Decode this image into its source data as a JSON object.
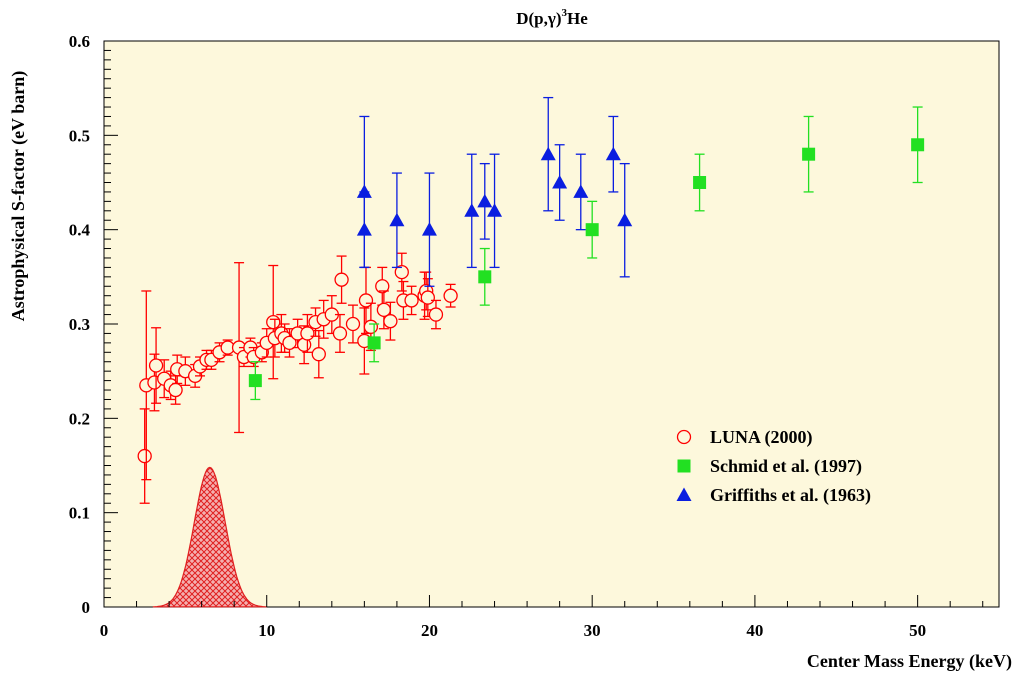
{
  "chart_data": {
    "type": "scatter",
    "title": "D(p,γ)³He",
    "title_parts": {
      "pre": "D(p,",
      "gamma": "γ",
      "paren": ")",
      "sup": "3",
      "post": "He"
    },
    "xlabel": "Center Mass Energy (keV)",
    "ylabel": "Astrophysical S-factor (eV barn)",
    "xlim": [
      0,
      55
    ],
    "ylim": [
      0,
      0.6
    ],
    "x_ticks": [
      0,
      10,
      20,
      30,
      40,
      50
    ],
    "y_ticks": [
      0,
      0.1,
      0.2,
      0.3,
      0.4,
      0.5,
      0.6
    ],
    "x_tick_labels": [
      "0",
      "10",
      "20",
      "30",
      "40",
      "50"
    ],
    "y_tick_labels": [
      "0",
      "0.1",
      "0.2",
      "0.3",
      "0.4",
      "0.5",
      "0.6"
    ],
    "plot_background": "#fdf8dc",
    "grid": false,
    "legend_position": "bottom-right",
    "series": [
      {
        "name": "LUNA (2000)",
        "marker": "open-circle",
        "color": "#ff0000",
        "points": [
          [
            2.5,
            0.16,
            0.05
          ],
          [
            2.6,
            0.235,
            0.1
          ],
          [
            3.1,
            0.238,
            0.03
          ],
          [
            3.2,
            0.256,
            0.04
          ],
          [
            3.7,
            0.242,
            0.02
          ],
          [
            4.1,
            0.235,
            0.015
          ],
          [
            4.4,
            0.23,
            0.015
          ],
          [
            4.5,
            0.252,
            0.015
          ],
          [
            5.0,
            0.25,
            0.015
          ],
          [
            5.6,
            0.245,
            0.012
          ],
          [
            5.9,
            0.255,
            0.01
          ],
          [
            6.3,
            0.262,
            0.01
          ],
          [
            6.6,
            0.262,
            0.01
          ],
          [
            7.1,
            0.27,
            0.01
          ],
          [
            7.6,
            0.275,
            0.008
          ],
          [
            8.3,
            0.275,
            0.09
          ],
          [
            8.6,
            0.265,
            0.01
          ],
          [
            9.0,
            0.275,
            0.01
          ],
          [
            9.2,
            0.265,
            0.01
          ],
          [
            9.7,
            0.27,
            0.01
          ],
          [
            10.0,
            0.28,
            0.015
          ],
          [
            10.4,
            0.302,
            0.06
          ],
          [
            10.5,
            0.285,
            0.02
          ],
          [
            10.9,
            0.29,
            0.02
          ],
          [
            11.1,
            0.285,
            0.015
          ],
          [
            11.4,
            0.28,
            0.015
          ],
          [
            11.9,
            0.29,
            0.015
          ],
          [
            12.3,
            0.278,
            0.02
          ],
          [
            12.5,
            0.29,
            0.02
          ],
          [
            13.0,
            0.302,
            0.015
          ],
          [
            13.2,
            0.268,
            0.025
          ],
          [
            13.5,
            0.305,
            0.02
          ],
          [
            14.0,
            0.31,
            0.02
          ],
          [
            14.5,
            0.29,
            0.02
          ],
          [
            14.6,
            0.347,
            0.025
          ],
          [
            15.3,
            0.3,
            0.02
          ],
          [
            16.0,
            0.282,
            0.035
          ],
          [
            16.1,
            0.325,
            0.035
          ],
          [
            16.4,
            0.297,
            0.025
          ],
          [
            17.1,
            0.34,
            0.02
          ],
          [
            17.2,
            0.315,
            0.02
          ],
          [
            17.6,
            0.303,
            0.02
          ],
          [
            18.3,
            0.355,
            0.02
          ],
          [
            18.4,
            0.325,
            0.02
          ],
          [
            18.9,
            0.325,
            0.015
          ],
          [
            19.7,
            0.33,
            0.025
          ],
          [
            19.8,
            0.335,
            0.02
          ],
          [
            19.9,
            0.328,
            0.02
          ],
          [
            20.4,
            0.31,
            0.015
          ],
          [
            21.3,
            0.33,
            0.012
          ]
        ]
      },
      {
        "name": "Schmid et al. (1997)",
        "marker": "filled-square",
        "color": "#22e022",
        "points": [
          [
            9.3,
            0.24,
            0.02
          ],
          [
            16.6,
            0.28,
            0.02
          ],
          [
            23.4,
            0.35,
            0.03
          ],
          [
            30.0,
            0.4,
            0.03
          ],
          [
            36.6,
            0.45,
            0.03
          ],
          [
            43.3,
            0.48,
            0.04
          ],
          [
            50.0,
            0.49,
            0.04
          ]
        ]
      },
      {
        "name": "Griffiths et al. (1963)",
        "marker": "filled-triangle",
        "color": "#0a1ee0",
        "points": [
          [
            16.0,
            0.44,
            0.08
          ],
          [
            16.0,
            0.4,
            0.04
          ],
          [
            18.0,
            0.41,
            0.05
          ],
          [
            20.0,
            0.4,
            0.06
          ],
          [
            22.6,
            0.42,
            0.06
          ],
          [
            23.4,
            0.43,
            0.04
          ],
          [
            24.0,
            0.42,
            0.06
          ],
          [
            27.3,
            0.48,
            0.06
          ],
          [
            28.0,
            0.45,
            0.04
          ],
          [
            29.3,
            0.44,
            0.04
          ],
          [
            31.3,
            0.48,
            0.04
          ],
          [
            32.0,
            0.41,
            0.06
          ]
        ]
      }
    ],
    "gaussian_peak": {
      "center": 6.5,
      "sigma": 0.95,
      "amplitude": 0.148,
      "x_range": [
        3.0,
        10.0
      ],
      "color": "#e02020"
    }
  }
}
